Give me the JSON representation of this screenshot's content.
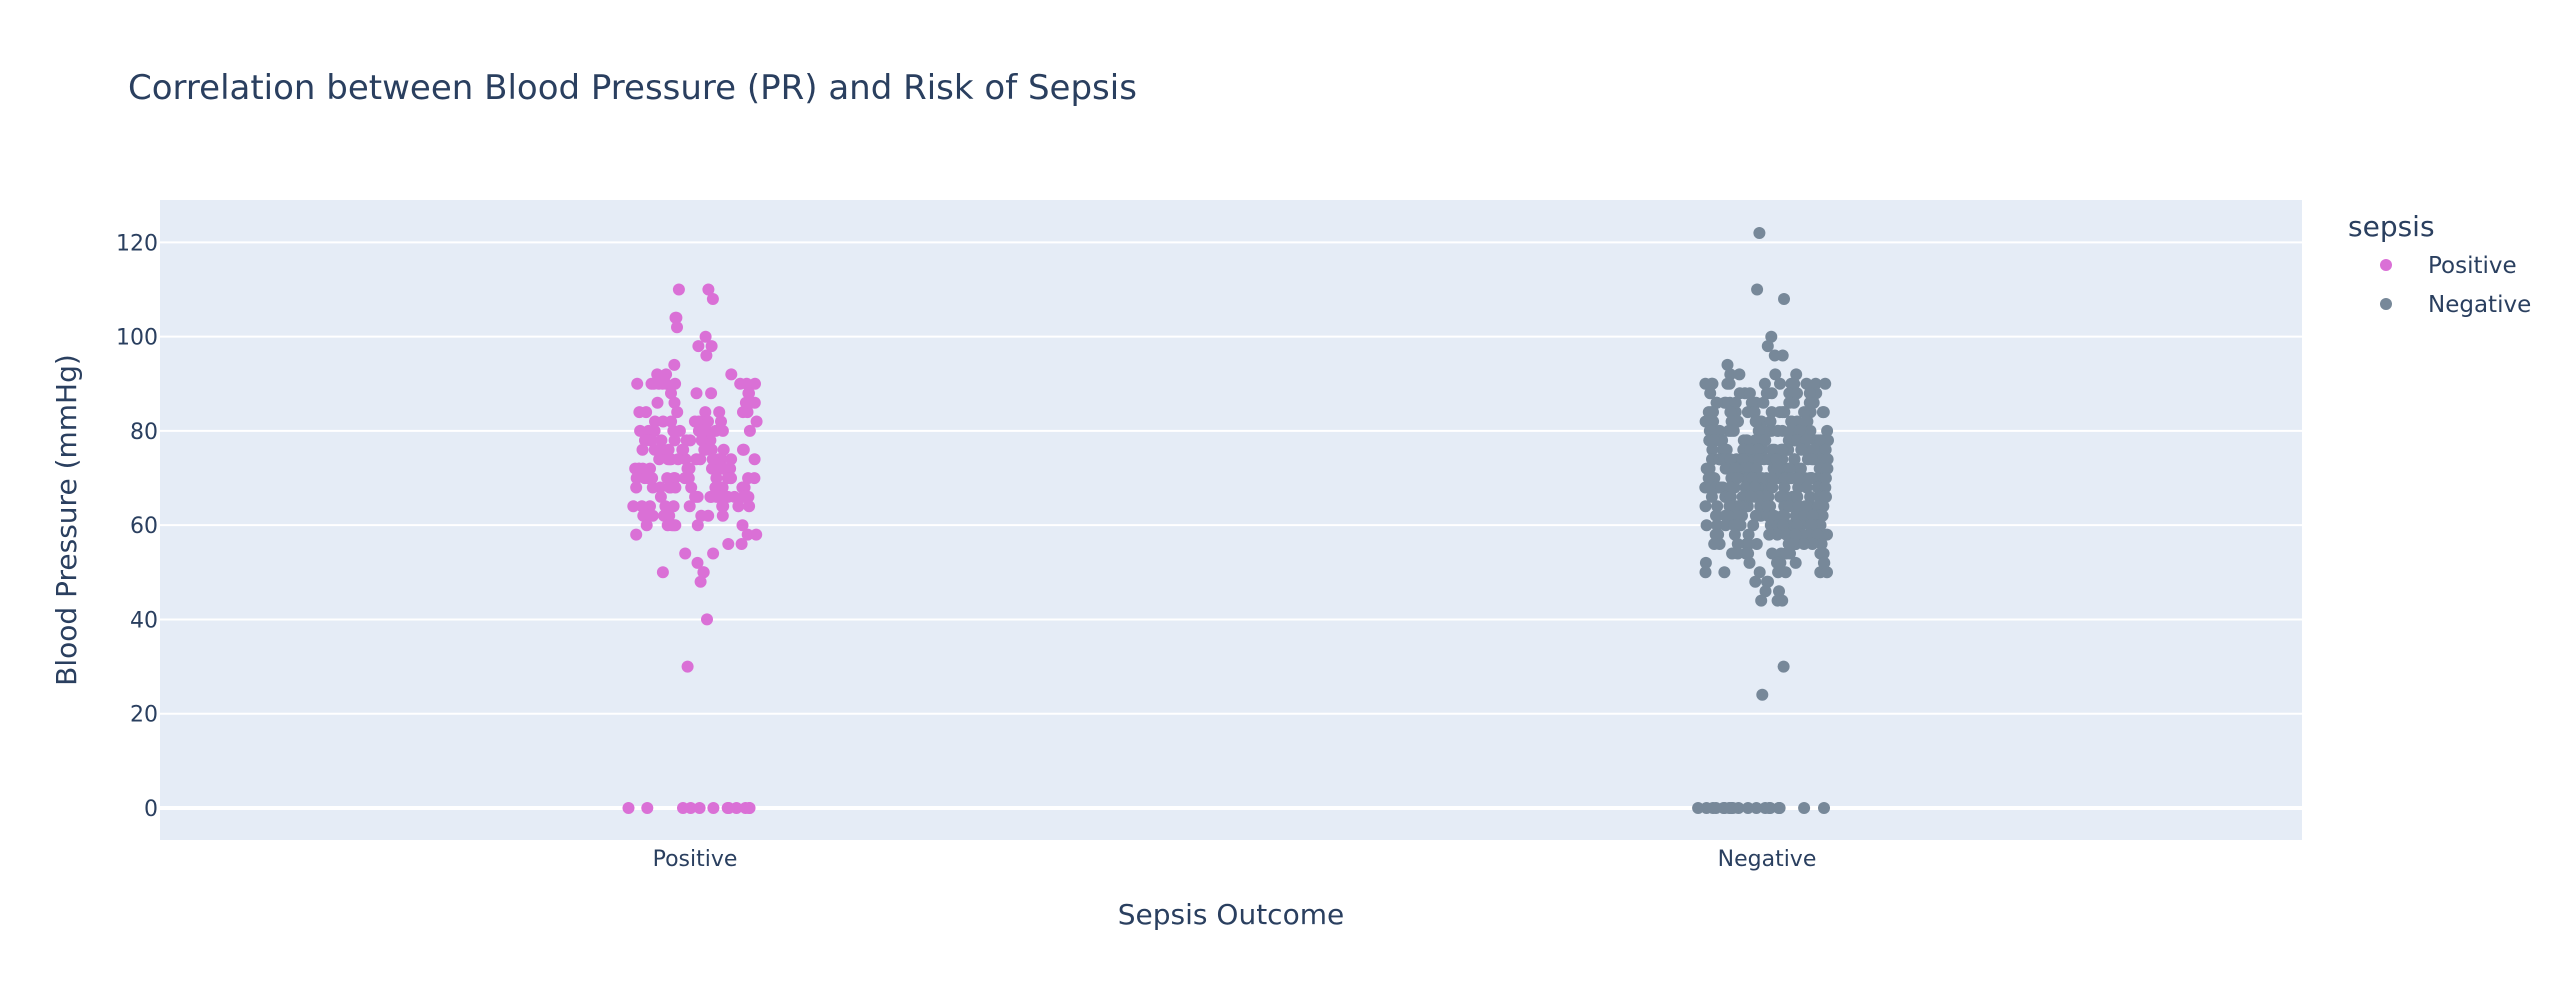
{
  "chart_data": {
    "type": "scatter",
    "title": "Correlation between Blood Pressure (PR) and Risk of Sepsis",
    "xlabel": "Sepsis Outcome",
    "ylabel": "Blood Pressure (mmHg)",
    "categories": [
      "Positive",
      "Negative"
    ],
    "ylim": [
      -6.8,
      129
    ],
    "yticks": [
      0,
      20,
      40,
      60,
      80,
      100,
      120
    ],
    "grid": true,
    "legend": {
      "title": "sepsis",
      "position": "right"
    },
    "series": [
      {
        "name": "Positive",
        "color": "#DA70D6",
        "category": "Positive",
        "values": [
          110,
          110,
          108,
          104,
          104,
          102,
          100,
          98,
          98,
          96,
          94,
          92,
          92,
          92,
          90,
          90,
          90,
          90,
          90,
          90,
          90,
          90,
          90,
          90,
          88,
          88,
          88,
          88,
          88,
          86,
          86,
          86,
          86,
          86,
          86,
          84,
          84,
          84,
          84,
          84,
          84,
          84,
          82,
          82,
          82,
          82,
          82,
          82,
          82,
          82,
          80,
          80,
          80,
          80,
          80,
          80,
          80,
          80,
          80,
          80,
          80,
          78,
          78,
          78,
          78,
          78,
          78,
          78,
          78,
          78,
          78,
          76,
          76,
          76,
          76,
          76,
          76,
          76,
          76,
          76,
          76,
          76,
          76,
          74,
          74,
          74,
          74,
          74,
          74,
          74,
          74,
          74,
          74,
          74,
          74,
          74,
          72,
          72,
          72,
          72,
          72,
          72,
          72,
          72,
          72,
          72,
          72,
          72,
          72,
          72,
          70,
          70,
          70,
          70,
          70,
          70,
          70,
          70,
          70,
          70,
          70,
          70,
          70,
          70,
          70,
          68,
          68,
          68,
          68,
          68,
          68,
          68,
          68,
          68,
          68,
          68,
          68,
          68,
          66,
          66,
          66,
          66,
          66,
          66,
          66,
          66,
          66,
          66,
          66,
          66,
          64,
          64,
          64,
          64,
          64,
          64,
          64,
          64,
          64,
          64,
          62,
          62,
          62,
          62,
          62,
          62,
          62,
          62,
          62,
          60,
          60,
          60,
          60,
          60,
          60,
          60,
          58,
          58,
          58,
          56,
          56,
          54,
          54,
          52,
          50,
          50,
          50,
          48,
          40,
          30,
          0,
          0,
          0,
          0,
          0,
          0,
          0,
          0,
          0,
          0,
          0,
          0
        ]
      },
      {
        "name": "Negative",
        "color": "#778899",
        "category": "Negative",
        "values": [
          122,
          110,
          108,
          100,
          98,
          96,
          96,
          94,
          92,
          92,
          92,
          92,
          90,
          90,
          90,
          90,
          90,
          90,
          90,
          90,
          90,
          90,
          90,
          90,
          88,
          88,
          88,
          88,
          88,
          88,
          88,
          88,
          88,
          88,
          88,
          86,
          86,
          86,
          86,
          86,
          86,
          86,
          86,
          86,
          86,
          86,
          86,
          86,
          84,
          84,
          84,
          84,
          84,
          84,
          84,
          84,
          84,
          84,
          84,
          84,
          84,
          84,
          84,
          84,
          82,
          82,
          82,
          82,
          82,
          82,
          82,
          82,
          82,
          82,
          82,
          82,
          82,
          82,
          82,
          82,
          82,
          82,
          80,
          80,
          80,
          80,
          80,
          80,
          80,
          80,
          80,
          80,
          80,
          80,
          80,
          80,
          80,
          80,
          80,
          80,
          80,
          80,
          80,
          80,
          78,
          78,
          78,
          78,
          78,
          78,
          78,
          78,
          78,
          78,
          78,
          78,
          78,
          78,
          78,
          78,
          78,
          78,
          78,
          78,
          78,
          78,
          78,
          78,
          76,
          76,
          76,
          76,
          76,
          76,
          76,
          76,
          76,
          76,
          76,
          76,
          76,
          76,
          76,
          76,
          76,
          76,
          76,
          76,
          76,
          76,
          76,
          76,
          76,
          76,
          76,
          76,
          74,
          74,
          74,
          74,
          74,
          74,
          74,
          74,
          74,
          74,
          74,
          74,
          74,
          74,
          74,
          74,
          74,
          74,
          74,
          74,
          74,
          74,
          74,
          74,
          74,
          74,
          74,
          74,
          74,
          74,
          72,
          72,
          72,
          72,
          72,
          72,
          72,
          72,
          72,
          72,
          72,
          72,
          72,
          72,
          72,
          72,
          72,
          72,
          72,
          72,
          72,
          72,
          72,
          72,
          72,
          72,
          72,
          72,
          72,
          72,
          70,
          70,
          70,
          70,
          70,
          70,
          70,
          70,
          70,
          70,
          70,
          70,
          70,
          70,
          70,
          70,
          70,
          70,
          70,
          70,
          70,
          70,
          70,
          70,
          70,
          70,
          70,
          70,
          70,
          70,
          70,
          70,
          68,
          68,
          68,
          68,
          68,
          68,
          68,
          68,
          68,
          68,
          68,
          68,
          68,
          68,
          68,
          68,
          68,
          68,
          68,
          68,
          68,
          68,
          68,
          68,
          68,
          68,
          68,
          68,
          68,
          68,
          66,
          66,
          66,
          66,
          66,
          66,
          66,
          66,
          66,
          66,
          66,
          66,
          66,
          66,
          66,
          66,
          66,
          66,
          66,
          66,
          66,
          66,
          66,
          66,
          66,
          66,
          66,
          66,
          64,
          64,
          64,
          64,
          64,
          64,
          64,
          64,
          64,
          64,
          64,
          64,
          64,
          64,
          64,
          64,
          64,
          64,
          64,
          64,
          64,
          64,
          64,
          64,
          64,
          64,
          62,
          62,
          62,
          62,
          62,
          62,
          62,
          62,
          62,
          62,
          62,
          62,
          62,
          62,
          62,
          62,
          62,
          62,
          62,
          62,
          62,
          62,
          62,
          62,
          60,
          60,
          60,
          60,
          60,
          60,
          60,
          60,
          60,
          60,
          60,
          60,
          60,
          60,
          60,
          60,
          60,
          60,
          60,
          60,
          60,
          60,
          58,
          58,
          58,
          58,
          58,
          58,
          58,
          58,
          58,
          58,
          58,
          58,
          58,
          58,
          58,
          58,
          56,
          56,
          56,
          56,
          56,
          56,
          56,
          56,
          56,
          56,
          56,
          56,
          54,
          54,
          54,
          54,
          54,
          54,
          54,
          54,
          54,
          54,
          52,
          52,
          52,
          52,
          52,
          52,
          52,
          52,
          50,
          50,
          50,
          50,
          50,
          50,
          50,
          48,
          48,
          48,
          46,
          46,
          44,
          44,
          44,
          30,
          24,
          0,
          0,
          0,
          0,
          0,
          0,
          0,
          0,
          0,
          0,
          0,
          0,
          0,
          0,
          0,
          0,
          0,
          0,
          0,
          0
        ]
      }
    ]
  }
}
